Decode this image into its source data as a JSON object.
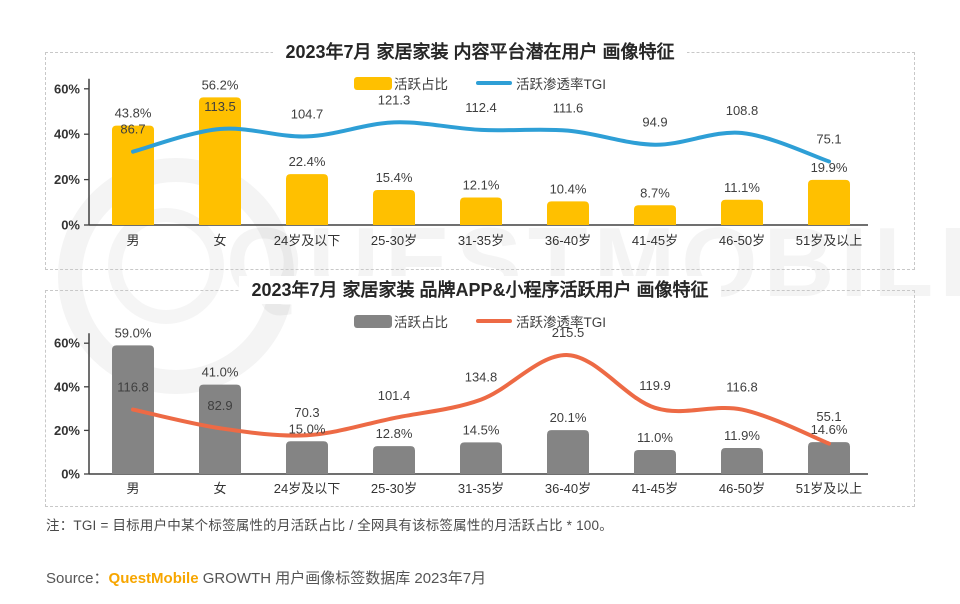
{
  "page": {
    "note": "注：TGI = 目标用户中某个标签属性的月活跃占比 / 全网具有该标签属性的月活跃占比 * 100。",
    "source_prefix": "Source：",
    "source_brand": "QuestMobile",
    "source_rest": " GROWTH 用户画像标签数据库 2023年7月",
    "watermark": "QUESTMOBILE",
    "brand_orange": "#F7A600"
  },
  "chart_data": [
    {
      "type": "bar",
      "subtype": "bar+line-combo",
      "title": "2023年7月 家居家装 内容平台潜在用户 画像特征",
      "categories": [
        "男",
        "女",
        "24岁及以下",
        "25-30岁",
        "31-35岁",
        "36-40岁",
        "41-45岁",
        "46-50岁",
        "51岁及以上"
      ],
      "series": [
        {
          "name": "活跃占比",
          "type": "bar",
          "unit": "%",
          "color": "#FFC000",
          "values": [
            43.8,
            56.2,
            22.4,
            15.4,
            12.1,
            10.4,
            8.7,
            11.1,
            19.9
          ]
        },
        {
          "name": "活跃渗透率TGI",
          "type": "line",
          "unit": "",
          "color": "#2E9FD6",
          "values": [
            86.7,
            113.5,
            104.7,
            121.3,
            112.4,
            111.6,
            94.9,
            108.8,
            75.1
          ]
        }
      ],
      "ylim": [
        0,
        60
      ],
      "yticks": [
        {
          "value": 0,
          "label": "0%"
        },
        {
          "value": 20,
          "label": "20%"
        },
        {
          "value": 40,
          "label": "40%"
        },
        {
          "value": 60,
          "label": "60%"
        }
      ],
      "tgi_ylim": [
        0,
        161
      ],
      "grid": false,
      "legend_position": "top-center"
    },
    {
      "type": "bar",
      "subtype": "bar+line-combo",
      "title": "2023年7月 家居家装 品牌APP&小程序活跃用户 画像特征",
      "categories": [
        "男",
        "女",
        "24岁及以下",
        "25-30岁",
        "31-35岁",
        "36-40岁",
        "41-45岁",
        "46-50岁",
        "51岁及以上"
      ],
      "series": [
        {
          "name": "活跃占比",
          "type": "bar",
          "unit": "%",
          "color": "#848484",
          "values": [
            59.0,
            41.0,
            15.0,
            12.8,
            14.5,
            20.1,
            11.0,
            11.9,
            14.6
          ]
        },
        {
          "name": "活跃渗透率TGI",
          "type": "line",
          "unit": "",
          "color": "#ED6A45",
          "values": [
            116.8,
            82.9,
            70.3,
            101.4,
            134.8,
            215.5,
            119.9,
            116.8,
            55.1
          ]
        }
      ],
      "ylim": [
        0,
        60
      ],
      "yticks": [
        {
          "value": 0,
          "label": "0%"
        },
        {
          "value": 20,
          "label": "20%"
        },
        {
          "value": 40,
          "label": "40%"
        },
        {
          "value": 60,
          "label": "60%"
        }
      ],
      "tgi_ylim": [
        0,
        237
      ],
      "grid": false,
      "legend_position": "top-center"
    }
  ]
}
